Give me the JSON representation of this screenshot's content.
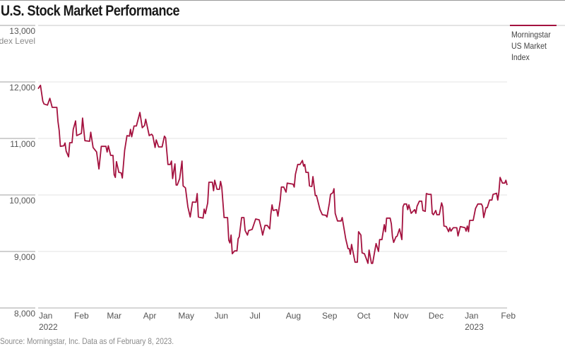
{
  "title": "U.S. Stock Market Performance",
  "source": "Source: Morningstar, Inc. Data as of February 8, 2023.",
  "colors": {
    "series": "#a4123f",
    "grid": "#e3e3e3",
    "axis": "#b5b5b5"
  },
  "chart_data": {
    "type": "line",
    "title": "U.S. Stock Market Performance",
    "ylabel": "Index Level",
    "ylim": [
      8000,
      13000
    ],
    "yticks": [
      "13,000",
      "12,000",
      "11,000",
      "10,000",
      "9,000",
      "8,000"
    ],
    "ytick_values": [
      13000,
      12000,
      11000,
      10000,
      9000,
      8000
    ],
    "xlim": [
      "2022-01-03",
      "2023-02-08"
    ],
    "xticks": [
      {
        "date": "2022-01-01",
        "label": "Jan",
        "year": "2022"
      },
      {
        "date": "2022-02-01",
        "label": "Feb"
      },
      {
        "date": "2022-03-01",
        "label": "Mar"
      },
      {
        "date": "2022-04-01",
        "label": "Apr"
      },
      {
        "date": "2022-05-01",
        "label": "May"
      },
      {
        "date": "2022-06-01",
        "label": "Jun"
      },
      {
        "date": "2022-07-01",
        "label": "Jul"
      },
      {
        "date": "2022-08-01",
        "label": "Aug"
      },
      {
        "date": "2022-09-01",
        "label": "Sep"
      },
      {
        "date": "2022-10-01",
        "label": "Oct"
      },
      {
        "date": "2022-11-01",
        "label": "Nov"
      },
      {
        "date": "2022-12-01",
        "label": "Dec"
      },
      {
        "date": "2023-01-01",
        "label": "Jan",
        "year": "2023"
      },
      {
        "date": "2023-02-01",
        "label": "Feb"
      }
    ],
    "grid": true,
    "legend_position": "right",
    "series": [
      {
        "name": "Morningstar US Market Index",
        "color": "#a4123f",
        "points": [
          [
            "2022-01-03",
            11880
          ],
          [
            "2022-01-05",
            11940
          ],
          [
            "2022-01-07",
            11660
          ],
          [
            "2022-01-08",
            11610
          ],
          [
            "2022-01-11",
            11590
          ],
          [
            "2022-01-13",
            11710
          ],
          [
            "2022-01-15",
            11550
          ],
          [
            "2022-01-19",
            11550
          ],
          [
            "2022-01-20",
            11300
          ],
          [
            "2022-01-21",
            11140
          ],
          [
            "2022-01-22",
            10860
          ],
          [
            "2022-01-25",
            10870
          ],
          [
            "2022-01-26",
            10920
          ],
          [
            "2022-01-27",
            10775
          ],
          [
            "2022-01-29",
            10675
          ],
          [
            "2022-01-30",
            10925
          ],
          [
            "2022-02-01",
            10925
          ],
          [
            "2022-02-02",
            11160
          ],
          [
            "2022-02-04",
            11310
          ],
          [
            "2022-02-05",
            11050
          ],
          [
            "2022-02-09",
            11090
          ],
          [
            "2022-02-10",
            11360
          ],
          [
            "2022-02-12",
            10960
          ],
          [
            "2022-02-16",
            10950
          ],
          [
            "2022-02-17",
            11110
          ],
          [
            "2022-02-19",
            10840
          ],
          [
            "2022-02-22",
            10760
          ],
          [
            "2022-02-24",
            10460
          ],
          [
            "2022-02-26",
            10860
          ],
          [
            "2022-03-02",
            10860
          ],
          [
            "2022-03-03",
            10760
          ],
          [
            "2022-03-04",
            10870
          ],
          [
            "2022-03-06",
            10700
          ],
          [
            "2022-03-08",
            10700
          ],
          [
            "2022-03-09",
            10360
          ],
          [
            "2022-03-10",
            10310
          ],
          [
            "2022-03-11",
            10590
          ],
          [
            "2022-03-13",
            10400
          ],
          [
            "2022-03-15",
            10390
          ],
          [
            "2022-03-16",
            10300
          ],
          [
            "2022-03-18",
            10790
          ],
          [
            "2022-03-20",
            11050
          ],
          [
            "2022-03-22",
            11040
          ],
          [
            "2022-03-23",
            11160
          ],
          [
            "2022-03-24",
            11030
          ],
          [
            "2022-03-26",
            11220
          ],
          [
            "2022-03-28",
            11220
          ],
          [
            "2022-03-31",
            11460
          ],
          [
            "2022-04-02",
            11190
          ],
          [
            "2022-04-04",
            11230
          ],
          [
            "2022-04-05",
            11340
          ],
          [
            "2022-04-08",
            11050
          ],
          [
            "2022-04-10",
            11075
          ],
          [
            "2022-04-11",
            11050
          ],
          [
            "2022-04-13",
            10840
          ],
          [
            "2022-04-14",
            10975
          ],
          [
            "2022-04-16",
            10850
          ],
          [
            "2022-04-19",
            10850
          ],
          [
            "2022-04-21",
            11040
          ],
          [
            "2022-04-22",
            11010
          ],
          [
            "2022-04-24",
            10540
          ],
          [
            "2022-04-26",
            10540
          ],
          [
            "2022-04-27",
            10600
          ],
          [
            "2022-04-28",
            10290
          ],
          [
            "2022-04-30",
            10550
          ],
          [
            "2022-05-01",
            10175
          ],
          [
            "2022-05-02",
            10175
          ],
          [
            "2022-05-04",
            10290
          ],
          [
            "2022-05-06",
            10600
          ],
          [
            "2022-05-07",
            10160
          ],
          [
            "2022-05-09",
            10125
          ],
          [
            "2022-05-11",
            9790
          ],
          [
            "2022-05-13",
            9610
          ],
          [
            "2022-05-15",
            9875
          ],
          [
            "2022-05-18",
            9870
          ],
          [
            "2022-05-19",
            10025
          ],
          [
            "2022-05-20",
            9610
          ],
          [
            "2022-05-24",
            9590
          ],
          [
            "2022-05-25",
            9750
          ],
          [
            "2022-05-26",
            9670
          ],
          [
            "2022-05-28",
            9860
          ],
          [
            "2022-05-29",
            10225
          ],
          [
            "2022-06-01",
            10225
          ],
          [
            "2022-06-02",
            10075
          ],
          [
            "2022-06-03",
            10260
          ],
          [
            "2022-06-05",
            10100
          ],
          [
            "2022-06-07",
            10100
          ],
          [
            "2022-06-08",
            10240
          ],
          [
            "2022-06-09",
            10140
          ],
          [
            "2022-06-11",
            9600
          ],
          [
            "2022-06-14",
            9600
          ],
          [
            "2022-06-15",
            9200
          ],
          [
            "2022-06-16",
            9150
          ],
          [
            "2022-06-17",
            9290
          ],
          [
            "2022-06-18",
            8960
          ],
          [
            "2022-06-20",
            9010
          ],
          [
            "2022-06-22",
            9010
          ],
          [
            "2022-06-23",
            9225
          ],
          [
            "2022-06-24",
            9260
          ],
          [
            "2022-06-26",
            9600
          ],
          [
            "2022-06-28",
            9600
          ],
          [
            "2022-06-29",
            9370
          ],
          [
            "2022-07-01",
            9290
          ],
          [
            "2022-07-02",
            9370
          ],
          [
            "2022-07-05",
            9390
          ],
          [
            "2022-07-08",
            9575
          ],
          [
            "2022-07-11",
            9560
          ],
          [
            "2022-07-13",
            9390
          ],
          [
            "2022-07-14",
            9290
          ],
          [
            "2022-07-16",
            9460
          ],
          [
            "2022-07-18",
            9460
          ],
          [
            "2022-07-20",
            9400
          ],
          [
            "2022-07-21",
            9660
          ],
          [
            "2022-07-22",
            9825
          ],
          [
            "2022-07-23",
            9725
          ],
          [
            "2022-07-26",
            9740
          ],
          [
            "2022-07-27",
            9625
          ],
          [
            "2022-07-29",
            9910
          ],
          [
            "2022-07-30",
            10140
          ],
          [
            "2022-08-01",
            10140
          ],
          [
            "2022-08-03",
            10050
          ],
          [
            "2022-08-04",
            10210
          ],
          [
            "2022-08-09",
            10190
          ],
          [
            "2022-08-10",
            10140
          ],
          [
            "2022-08-11",
            10365
          ],
          [
            "2022-08-13",
            10540
          ],
          [
            "2022-08-15",
            10540
          ],
          [
            "2022-08-17",
            10610
          ],
          [
            "2022-08-18",
            10510
          ],
          [
            "2022-08-19",
            10540
          ],
          [
            "2022-08-20",
            10400
          ],
          [
            "2022-08-22",
            10400
          ],
          [
            "2022-08-23",
            10160
          ],
          [
            "2022-08-25",
            10150
          ],
          [
            "2022-08-26",
            10325
          ],
          [
            "2022-08-28",
            9990
          ],
          [
            "2022-08-29",
            9990
          ],
          [
            "2022-09-01",
            9740
          ],
          [
            "2022-09-03",
            9650
          ],
          [
            "2022-09-06",
            9640
          ],
          [
            "2022-09-07",
            9610
          ],
          [
            "2022-09-09",
            9850
          ],
          [
            "2022-09-10",
            10010
          ],
          [
            "2022-09-12",
            10040
          ],
          [
            "2022-09-13",
            10110
          ],
          [
            "2022-09-14",
            9675
          ],
          [
            "2022-09-16",
            9540
          ],
          [
            "2022-09-19",
            9540
          ],
          [
            "2022-09-20",
            9600
          ],
          [
            "2022-09-23",
            9225
          ],
          [
            "2022-09-25",
            9050
          ],
          [
            "2022-09-26",
            9050
          ],
          [
            "2022-09-27",
            8950
          ],
          [
            "2022-09-28",
            9125
          ],
          [
            "2022-10-01",
            8810
          ],
          [
            "2022-10-03",
            8810
          ],
          [
            "2022-10-04",
            9350
          ],
          [
            "2022-10-06",
            9290
          ],
          [
            "2022-10-07",
            8975
          ],
          [
            "2022-10-09",
            8960
          ],
          [
            "2022-10-11",
            8850
          ],
          [
            "2022-10-12",
            8790
          ],
          [
            "2022-10-13",
            9025
          ],
          [
            "2022-10-15",
            8790
          ],
          [
            "2022-10-16",
            8790
          ],
          [
            "2022-10-19",
            9140
          ],
          [
            "2022-10-21",
            9000
          ],
          [
            "2022-10-22",
            9210
          ],
          [
            "2022-10-24",
            9210
          ],
          [
            "2022-10-26",
            9475
          ],
          [
            "2022-10-27",
            9350
          ],
          [
            "2022-10-28",
            9590
          ],
          [
            "2022-10-31",
            9590
          ],
          [
            "2022-11-01",
            9490
          ],
          [
            "2022-11-02",
            9260
          ],
          [
            "2022-11-03",
            9160
          ],
          [
            "2022-11-05",
            9260
          ],
          [
            "2022-11-06",
            9270
          ],
          [
            "2022-11-08",
            9400
          ],
          [
            "2022-11-10",
            9210
          ],
          [
            "2022-11-11",
            9790
          ],
          [
            "2022-11-12",
            9840
          ],
          [
            "2022-11-14",
            9840
          ],
          [
            "2022-11-15",
            9740
          ],
          [
            "2022-11-16",
            9825
          ],
          [
            "2022-11-18",
            9675
          ],
          [
            "2022-11-21",
            9740
          ],
          [
            "2022-11-22",
            9675
          ],
          [
            "2022-11-23",
            9800
          ],
          [
            "2022-11-25",
            9890
          ],
          [
            "2022-11-27",
            9890
          ],
          [
            "2022-11-28",
            9725
          ],
          [
            "2022-11-30",
            9710
          ],
          [
            "2022-12-01",
            10025
          ],
          [
            "2022-12-03",
            10010
          ],
          [
            "2022-12-05",
            10010
          ],
          [
            "2022-12-06",
            9675
          ],
          [
            "2022-12-07",
            9650
          ],
          [
            "2022-12-09",
            9725
          ],
          [
            "2022-12-10",
            9650
          ],
          [
            "2022-12-12",
            9650
          ],
          [
            "2022-12-14",
            9860
          ],
          [
            "2022-12-15",
            9790
          ],
          [
            "2022-12-16",
            9450
          ],
          [
            "2022-12-18",
            9440
          ],
          [
            "2022-12-20",
            9350
          ],
          [
            "2022-12-21",
            9420
          ],
          [
            "2022-12-22",
            9360
          ],
          [
            "2022-12-24",
            9420
          ],
          [
            "2022-12-27",
            9420
          ],
          [
            "2022-12-28",
            9275
          ],
          [
            "2022-12-30",
            9440
          ],
          [
            "2023-01-03",
            9420
          ],
          [
            "2023-01-04",
            9360
          ],
          [
            "2023-01-05",
            9450
          ],
          [
            "2023-01-06",
            9350
          ],
          [
            "2023-01-07",
            9550
          ],
          [
            "2023-01-10",
            9550
          ],
          [
            "2023-01-12",
            9760
          ],
          [
            "2023-01-14",
            9840
          ],
          [
            "2023-01-17",
            9840
          ],
          [
            "2023-01-18",
            9800
          ],
          [
            "2023-01-19",
            9600
          ],
          [
            "2023-01-21",
            9775
          ],
          [
            "2023-01-22",
            9775
          ],
          [
            "2023-01-24",
            9910
          ],
          [
            "2023-01-26",
            9910
          ],
          [
            "2023-01-27",
            10010
          ],
          [
            "2023-01-30",
            10030
          ],
          [
            "2023-01-31",
            9910
          ],
          [
            "2023-02-01",
            10050
          ],
          [
            "2023-02-02",
            10310
          ],
          [
            "2023-02-04",
            10210
          ],
          [
            "2023-02-06",
            10210
          ],
          [
            "2023-02-07",
            10260
          ],
          [
            "2023-02-08",
            10175
          ]
        ]
      }
    ]
  },
  "legend": {
    "label": "Morningstar US Market Index",
    "lines": [
      "Morningstar",
      "US Market",
      "Index"
    ]
  }
}
